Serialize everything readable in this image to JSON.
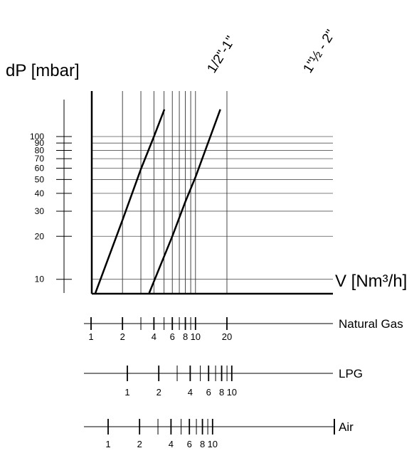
{
  "chart_data": {
    "type": "line",
    "y_axis": {
      "label": "dP [mbar]",
      "scale": "log",
      "range": [
        8,
        125
      ],
      "ticks": [
        10,
        20,
        30,
        40,
        50,
        60,
        70,
        80,
        90,
        100
      ],
      "tick_labels": [
        "10",
        "20",
        "30",
        "40",
        "50",
        "60",
        "70",
        "80",
        "90",
        "100"
      ]
    },
    "x_axis": {
      "label": "V [Nm³/h]",
      "scale": "log",
      "range": [
        1,
        30
      ],
      "gridlines": [
        2,
        3,
        4,
        5,
        6,
        7,
        8,
        9,
        10,
        20
      ]
    },
    "series": [
      {
        "name": "1/2\"-1\"",
        "points": [
          [
            1.1,
            8
          ],
          [
            2,
            26
          ],
          [
            3,
            59
          ],
          [
            4,
            100
          ],
          [
            5.04,
            155
          ]
        ]
      },
      {
        "name": "1\"½ - 2\"",
        "points": [
          [
            3.6,
            8
          ],
          [
            6,
            20
          ],
          [
            8,
            35
          ],
          [
            10,
            52
          ],
          [
            17.3,
            155
          ]
        ]
      }
    ],
    "flow_scales": [
      {
        "name": "Natural Gas",
        "ticks": [
          1,
          2,
          3,
          4,
          5,
          6,
          7,
          8,
          9,
          10,
          20
        ],
        "labels": [
          {
            "text": "1",
            "value": 1
          },
          {
            "text": "2",
            "value": 2
          },
          {
            "text": "4",
            "value": 4
          },
          {
            "text": "6",
            "value": 6
          },
          {
            "text": "8",
            "value": 8
          },
          {
            "text": "10",
            "value": 10
          },
          {
            "text": "20",
            "value": 20
          }
        ]
      },
      {
        "name": "LPG",
        "ticks": [
          1,
          2,
          3,
          4,
          5,
          6,
          7,
          8,
          9,
          10
        ],
        "labels": [
          {
            "text": "1",
            "value": 1
          },
          {
            "text": "2",
            "value": 2
          },
          {
            "text": "4",
            "value": 4
          },
          {
            "text": "6",
            "value": 6
          },
          {
            "text": "8",
            "value": 8
          },
          {
            "text": "10",
            "value": 10
          }
        ]
      },
      {
        "name": "Air",
        "ticks": [
          1,
          2,
          3,
          4,
          5,
          6,
          7,
          8,
          9,
          10
        ],
        "labels": [
          {
            "text": "1",
            "value": 1
          },
          {
            "text": "2",
            "value": 2
          },
          {
            "text": "4",
            "value": 4
          },
          {
            "text": "6",
            "value": 6
          },
          {
            "text": "8",
            "value": 8
          },
          {
            "text": "10",
            "value": 10
          }
        ]
      }
    ]
  }
}
